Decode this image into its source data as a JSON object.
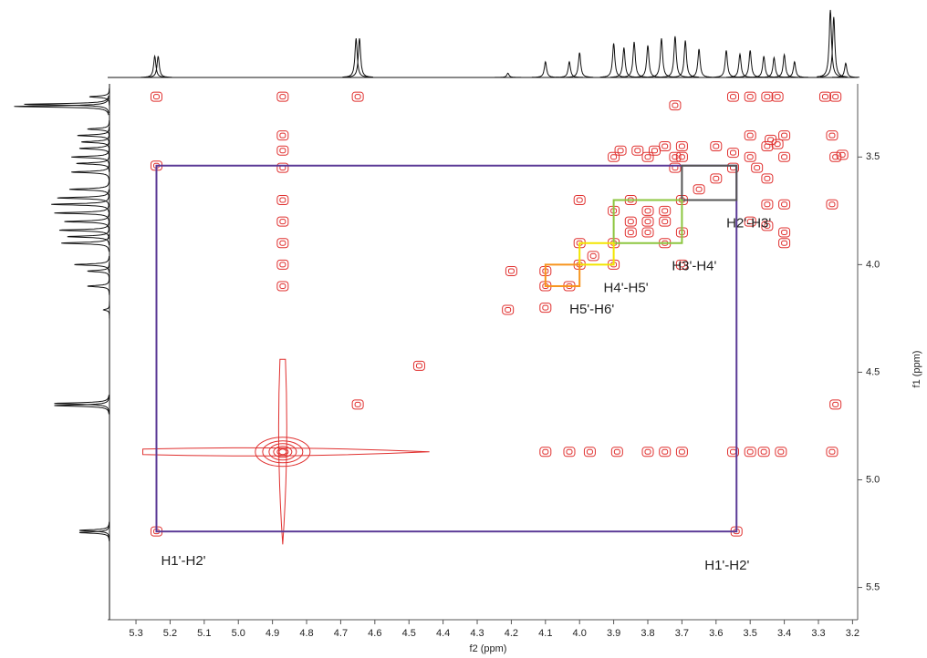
{
  "chart_data": {
    "type": "nmr2d",
    "x_label": "f2 (ppm)",
    "y_label": "f1 (ppm)",
    "xlim": [
      5.383,
      3.185
    ],
    "ylim": [
      3.16,
      5.65
    ],
    "xticks": [
      5.3,
      5.2,
      5.1,
      {
        "value": 5,
        "label": "5.0"
      },
      4.9,
      4.8,
      4.7,
      4.6,
      4.5,
      4.4,
      4.3,
      4.2,
      4.1,
      {
        "value": 4,
        "label": "4.0"
      },
      3.9,
      3.8,
      3.7,
      3.6,
      3.5,
      3.4,
      3.3,
      3.2
    ],
    "yticks": [
      3.5,
      {
        "value": 4,
        "label": "4.0"
      },
      4.5,
      {
        "value": 5,
        "label": "5.0"
      },
      5.5
    ],
    "contour_color": "#e0302f",
    "projection": {
      "color": "#111111",
      "ppm": [
        5.245,
        5.235,
        4.655,
        4.645,
        4.21,
        4.1,
        4.03,
        4.0,
        3.9,
        3.87,
        3.84,
        3.8,
        3.76,
        3.72,
        3.69,
        3.65,
        3.57,
        3.53,
        3.5,
        3.46,
        3.43,
        3.4,
        3.37,
        3.265,
        3.255,
        3.22
      ],
      "height": [
        0.3,
        0.3,
        0.55,
        0.55,
        0.06,
        0.22,
        0.22,
        0.35,
        0.48,
        0.42,
        0.5,
        0.45,
        0.55,
        0.58,
        0.52,
        0.4,
        0.38,
        0.33,
        0.38,
        0.3,
        0.28,
        0.32,
        0.22,
        0.95,
        0.85,
        0.2
      ]
    },
    "peaks": {
      "x": [
        5.24,
        4.65,
        3.25,
        4.65,
        3.25,
        3.25,
        5.24,
        3.54,
        5.24,
        4.21,
        4.1,
        4.0,
        3.96,
        3.9,
        3.85,
        3.8,
        3.75,
        3.7,
        3.65,
        3.6,
        3.55,
        3.5,
        3.45,
        3.4,
        4.0,
        3.7,
        3.9,
        4.0,
        4.03,
        4.1,
        4.1,
        4.2,
        3.85,
        3.8,
        3.75,
        3.8,
        3.9,
        3.75,
        3.7,
        3.85,
        3.6,
        3.45,
        3.5,
        3.4,
        3.55,
        3.48,
        3.42,
        3.44,
        3.5,
        3.45,
        3.42,
        3.55,
        3.28,
        3.23,
        3.26,
        3.45,
        3.4,
        3.5,
        3.45,
        3.4,
        3.4,
        3.9,
        3.8,
        3.75,
        3.72,
        3.72,
        3.7,
        3.7,
        3.88,
        3.83,
        3.78,
        3.26,
        3.72,
        4.87,
        4.87,
        4.87,
        4.87,
        4.87,
        4.87,
        4.87,
        4.87,
        4.87,
        4.1,
        4.03,
        3.97,
        3.89,
        3.8,
        3.75,
        3.7,
        3.55,
        3.5,
        3.46,
        3.41,
        3.26,
        4.47
      ],
      "y": [
        3.22,
        3.22,
        3.22,
        4.65,
        4.65,
        3.5,
        3.54,
        5.24,
        5.24,
        4.21,
        4.1,
        4.0,
        3.96,
        3.9,
        3.85,
        3.8,
        3.75,
        3.7,
        3.65,
        3.6,
        3.55,
        3.5,
        3.45,
        3.4,
        3.7,
        4.0,
        4.0,
        3.9,
        4.1,
        4.03,
        4.2,
        4.03,
        3.8,
        3.85,
        3.8,
        3.75,
        3.75,
        3.9,
        3.85,
        3.7,
        3.45,
        3.6,
        3.4,
        3.5,
        3.48,
        3.55,
        3.44,
        3.42,
        3.22,
        3.22,
        3.22,
        3.22,
        3.22,
        3.49,
        3.72,
        3.72,
        3.72,
        3.8,
        3.82,
        3.85,
        3.9,
        3.5,
        3.5,
        3.45,
        3.5,
        3.55,
        3.45,
        3.5,
        3.47,
        3.47,
        3.47,
        3.4,
        3.26,
        3.22,
        3.4,
        3.47,
        3.55,
        3.7,
        3.8,
        3.9,
        4.0,
        4.1,
        4.87,
        4.87,
        4.87,
        4.87,
        4.87,
        4.87,
        4.87,
        4.87,
        4.87,
        4.87,
        4.87,
        4.87,
        4.47
      ]
    },
    "solvent": {
      "x": 4.87,
      "y": 4.87,
      "streak_x": [
        5.28,
        4.44
      ],
      "streak_y": [
        4.44,
        5.3
      ]
    },
    "boxes": [
      {
        "labels": [
          "H1'-H2'",
          "H1'-H2'"
        ],
        "color": "#5b3a96",
        "x": [
          5.24,
          3.54
        ],
        "y": [
          3.54,
          5.24
        ]
      },
      {
        "labels": [
          "H2'-H3'"
        ],
        "color": "#555555",
        "x": [
          3.7,
          3.54
        ],
        "y": [
          3.54,
          3.7
        ]
      },
      {
        "labels": [
          "H3'-H4'"
        ],
        "color": "#8cc63f",
        "x": [
          3.9,
          3.7
        ],
        "y": [
          3.7,
          3.9
        ]
      },
      {
        "labels": [
          "H4'-H5'"
        ],
        "color": "#f2e600",
        "x": [
          4.0,
          3.9
        ],
        "y": [
          3.9,
          4.0
        ]
      },
      {
        "labels": [
          "H5'-H6'"
        ],
        "color": "#f7941d",
        "x": [
          4.1,
          4.0
        ],
        "y": [
          4.0,
          4.1
        ]
      }
    ]
  }
}
